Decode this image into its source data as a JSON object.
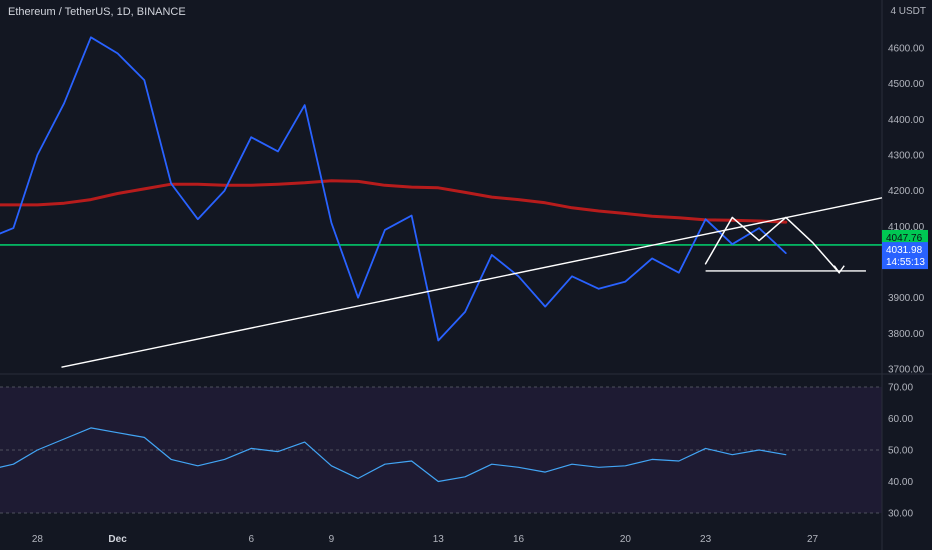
{
  "header": {
    "title": "Ethereum / TetherUS, 1D, BINANCE",
    "unit": "4 USDT"
  },
  "colors": {
    "background": "#131722",
    "price_line": "#2962ff",
    "moving_average": "#b71c1c",
    "horizontal_level": "#00e676",
    "trendline": "#ffffff",
    "pattern": "#ffffff",
    "rsi_line": "#42a5f5",
    "rsi_band": "#1e1b33",
    "current_price_label": "#2962ff",
    "level_label": "#00c853"
  },
  "labels": {
    "level_price": "4047.76",
    "current_price": "4031.98",
    "countdown": "14:55:13"
  },
  "chart_data": [
    {
      "type": "line",
      "panel": "price",
      "ylim": [
        3700,
        4650
      ],
      "y_ticks": [
        "4600.00",
        "4500.00",
        "4400.00",
        "4300.00",
        "4200.00",
        "4100.00",
        "3900.00",
        "3800.00",
        "3700.00"
      ],
      "y_tick_values": [
        4600,
        4500,
        4400,
        4300,
        4200,
        4100,
        3900,
        3800,
        3700
      ],
      "x_tick_labels": [
        "28",
        "Dec",
        "6",
        "9",
        "13",
        "16",
        "20",
        "23",
        "27"
      ],
      "x_tick_days": [
        0,
        3,
        8,
        11,
        15,
        18,
        22,
        25,
        29
      ],
      "xlim": [
        -1.4,
        31.6
      ],
      "grid": false,
      "series": [
        {
          "role": "price",
          "x": [
            -1.4,
            -0.9,
            0,
            1,
            2,
            3,
            4,
            5,
            6,
            7,
            8,
            9,
            10,
            11,
            12,
            13,
            14,
            15,
            16,
            17,
            18,
            19,
            20,
            21,
            22,
            23,
            24,
            25,
            26,
            27,
            28
          ],
          "values": [
            4080,
            4095,
            4300,
            4445,
            4630,
            4585,
            4510,
            4220,
            4120,
            4200,
            4350,
            4310,
            4440,
            4110,
            3900,
            4090,
            4130,
            3780,
            3860,
            4020,
            3960,
            3875,
            3960,
            3925,
            3945,
            4010,
            3970,
            4120,
            4050,
            4095,
            4025
          ]
        },
        {
          "role": "moving_average",
          "x": [
            -1.4,
            0,
            1,
            2,
            3,
            4,
            5,
            6,
            7,
            8,
            9,
            10,
            11,
            12,
            13,
            14,
            15,
            16,
            17,
            18,
            19,
            20,
            21,
            22,
            23,
            24,
            25,
            26,
            27,
            28
          ],
          "values": [
            4160,
            4160,
            4165,
            4175,
            4192,
            4205,
            4218,
            4218,
            4215,
            4215,
            4218,
            4222,
            4228,
            4226,
            4215,
            4210,
            4208,
            4195,
            4182,
            4175,
            4166,
            4152,
            4143,
            4136,
            4128,
            4124,
            4118,
            4117,
            4115,
            4112
          ]
        }
      ],
      "horizontal_level": 4047.76,
      "trendline": {
        "x": [
          0.9,
          31.6
        ],
        "values": [
          3705,
          4180
        ]
      },
      "pattern": {
        "x": [
          25.0,
          26.0,
          27.0,
          28.0,
          29.0,
          30.0
        ],
        "values": [
          3995,
          4125,
          4060,
          4125,
          4055,
          3970
        ],
        "base": {
          "x": [
            25.0,
            31.0
          ],
          "values": [
            3975,
            3975
          ]
        },
        "arrow": {
          "x": [
            29.6,
            30.0
          ],
          "values": [
            4000,
            3970
          ]
        }
      }
    },
    {
      "type": "line",
      "panel": "rsi",
      "ylim": [
        25,
        75
      ],
      "y_ticks": [
        "70.00",
        "60.00",
        "50.00",
        "40.00",
        "30.00"
      ],
      "y_tick_values": [
        70,
        60,
        50,
        40,
        30
      ],
      "band": [
        30,
        70
      ],
      "guide_lines": [
        70,
        50,
        30
      ],
      "series": [
        {
          "role": "rsi",
          "x": [
            -1.4,
            -0.9,
            0,
            1,
            2,
            3,
            4,
            5,
            6,
            7,
            8,
            9,
            10,
            11,
            12,
            13,
            14,
            15,
            16,
            17,
            18,
            19,
            20,
            21,
            22,
            23,
            24,
            25,
            26,
            27,
            28
          ],
          "values": [
            44.5,
            45.5,
            50,
            53.5,
            57,
            55.5,
            54,
            47,
            45,
            47,
            50.5,
            49.5,
            52.5,
            45,
            41,
            45.5,
            46.5,
            40,
            41.5,
            45.5,
            44.5,
            43,
            45.5,
            44.5,
            45,
            47,
            46.5,
            50.5,
            48.5,
            50,
            48.5
          ]
        }
      ]
    }
  ]
}
